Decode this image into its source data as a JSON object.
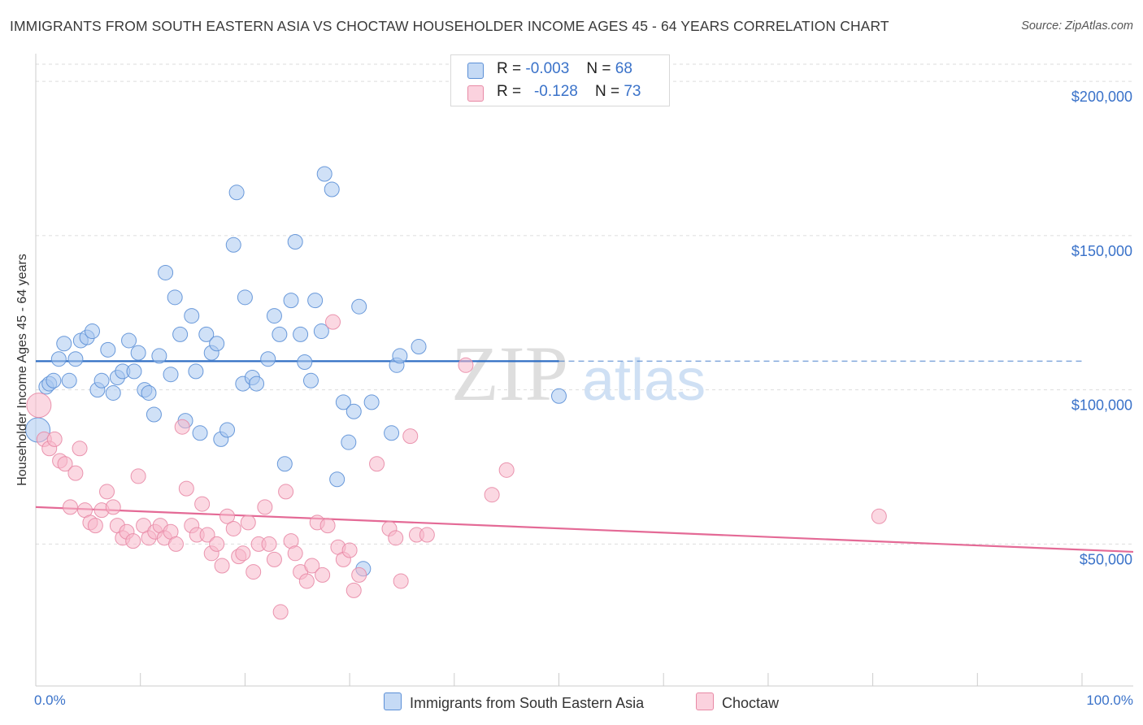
{
  "title": "IMMIGRANTS FROM SOUTH EASTERN ASIA VS CHOCTAW HOUSEHOLDER INCOME AGES 45 - 64 YEARS CORRELATION CHART",
  "source": "Source: ZipAtlas.com",
  "watermark": {
    "zip": "ZIP",
    "atlas": "atlas"
  },
  "legend": {
    "r_label": "R =",
    "n_label": "N =",
    "blue": {
      "r": "-0.003",
      "n": "68"
    },
    "pink": {
      "r": "-0.128",
      "n": "73"
    }
  },
  "colors": {
    "blue_fill": "#a9c8f0",
    "blue_stroke": "#5b8fd6",
    "blue_line": "#2f6ec4",
    "pink_fill": "#f7b8cb",
    "pink_stroke": "#e88aa6",
    "pink_line": "#e46a96",
    "axis_label": "#3a72c9"
  },
  "chart_data": {
    "type": "scatter",
    "title": "IMMIGRANTS FROM SOUTH EASTERN ASIA VS CHOCTAW HOUSEHOLDER INCOME AGES 45 - 64 YEARS CORRELATION CHART",
    "xlabel": "",
    "ylabel": "Householder Income Ages 45 - 64 years",
    "xlim": [
      0,
      100
    ],
    "ylim": [
      4000,
      209000
    ],
    "x_tick_labels": [
      "0.0%",
      "100.0%"
    ],
    "y_ticks": [
      50000,
      100000,
      150000,
      200000
    ],
    "y_tick_labels": [
      "$50,000",
      "$100,000",
      "$150,000",
      "$200,000"
    ],
    "grid": true,
    "legend_position": "top-center",
    "series": [
      {
        "name": "Immigrants from South Eastern Asia",
        "color": "#a9c8f0",
        "trend": {
          "x": [
            0,
            50
          ],
          "y": [
            109300,
            109300
          ],
          "dashed_to_x": 100
        },
        "points": [
          [
            0.2,
            87000
          ],
          [
            1.0,
            101000
          ],
          [
            1.3,
            102000
          ],
          [
            1.7,
            103000
          ],
          [
            2.2,
            110000
          ],
          [
            2.7,
            115000
          ],
          [
            3.2,
            103000
          ],
          [
            3.8,
            110000
          ],
          [
            4.3,
            116000
          ],
          [
            4.9,
            117000
          ],
          [
            5.4,
            119000
          ],
          [
            5.9,
            100000
          ],
          [
            6.3,
            103000
          ],
          [
            6.9,
            113000
          ],
          [
            7.4,
            99000
          ],
          [
            7.8,
            104000
          ],
          [
            8.3,
            106000
          ],
          [
            8.9,
            116000
          ],
          [
            9.4,
            106000
          ],
          [
            9.8,
            112000
          ],
          [
            10.4,
            100000
          ],
          [
            10.8,
            99000
          ],
          [
            11.3,
            92000
          ],
          [
            11.8,
            111000
          ],
          [
            12.4,
            138000
          ],
          [
            12.9,
            105000
          ],
          [
            13.3,
            130000
          ],
          [
            13.8,
            118000
          ],
          [
            14.3,
            90000
          ],
          [
            14.9,
            124000
          ],
          [
            15.3,
            106000
          ],
          [
            15.7,
            86000
          ],
          [
            16.3,
            118000
          ],
          [
            16.8,
            112000
          ],
          [
            17.3,
            115000
          ],
          [
            17.7,
            84000
          ],
          [
            18.3,
            87000
          ],
          [
            18.9,
            147000
          ],
          [
            19.2,
            164000
          ],
          [
            19.8,
            102000
          ],
          [
            20.0,
            130000
          ],
          [
            20.7,
            104000
          ],
          [
            21.1,
            102000
          ],
          [
            22.2,
            110000
          ],
          [
            22.8,
            124000
          ],
          [
            23.3,
            118000
          ],
          [
            23.8,
            76000
          ],
          [
            24.4,
            129000
          ],
          [
            24.8,
            148000
          ],
          [
            25.3,
            118000
          ],
          [
            25.7,
            109000
          ],
          [
            26.3,
            103000
          ],
          [
            26.7,
            129000
          ],
          [
            27.3,
            119000
          ],
          [
            27.6,
            170000
          ],
          [
            28.3,
            165000
          ],
          [
            28.8,
            71000
          ],
          [
            29.4,
            96000
          ],
          [
            29.9,
            83000
          ],
          [
            30.4,
            93000
          ],
          [
            30.9,
            127000
          ],
          [
            31.3,
            42000
          ],
          [
            32.1,
            96000
          ],
          [
            34.0,
            86000
          ],
          [
            34.5,
            108000
          ],
          [
            34.8,
            111000
          ],
          [
            36.6,
            114000
          ],
          [
            50.0,
            98000
          ]
        ]
      },
      {
        "name": "Choctaw",
        "color": "#f7b8cb",
        "trend": {
          "x": [
            0,
            100
          ],
          "y": [
            62000,
            47500
          ]
        },
        "points": [
          [
            0.3,
            95000
          ],
          [
            0.8,
            84000
          ],
          [
            1.3,
            81000
          ],
          [
            1.8,
            84000
          ],
          [
            2.3,
            77000
          ],
          [
            2.8,
            76000
          ],
          [
            3.3,
            62000
          ],
          [
            3.8,
            73000
          ],
          [
            4.2,
            81000
          ],
          [
            4.7,
            61000
          ],
          [
            5.2,
            57000
          ],
          [
            5.7,
            56000
          ],
          [
            6.3,
            61000
          ],
          [
            6.8,
            67000
          ],
          [
            7.4,
            62000
          ],
          [
            7.8,
            56000
          ],
          [
            8.3,
            52000
          ],
          [
            8.7,
            54000
          ],
          [
            9.3,
            51000
          ],
          [
            9.8,
            72000
          ],
          [
            10.3,
            56000
          ],
          [
            10.8,
            52000
          ],
          [
            11.4,
            54000
          ],
          [
            11.9,
            56000
          ],
          [
            12.3,
            52000
          ],
          [
            12.9,
            54000
          ],
          [
            13.4,
            50000
          ],
          [
            14.0,
            88000
          ],
          [
            14.4,
            68000
          ],
          [
            14.9,
            56000
          ],
          [
            15.4,
            53000
          ],
          [
            15.9,
            63000
          ],
          [
            16.4,
            53000
          ],
          [
            16.8,
            47000
          ],
          [
            17.3,
            50000
          ],
          [
            17.8,
            43000
          ],
          [
            18.3,
            59000
          ],
          [
            18.9,
            55000
          ],
          [
            19.4,
            46000
          ],
          [
            19.8,
            47000
          ],
          [
            20.3,
            57000
          ],
          [
            20.8,
            41000
          ],
          [
            21.3,
            50000
          ],
          [
            21.9,
            62000
          ],
          [
            22.3,
            50000
          ],
          [
            22.8,
            45000
          ],
          [
            23.4,
            28000
          ],
          [
            23.9,
            67000
          ],
          [
            24.4,
            51000
          ],
          [
            24.8,
            47000
          ],
          [
            25.3,
            41000
          ],
          [
            25.9,
            38000
          ],
          [
            26.4,
            43000
          ],
          [
            26.9,
            57000
          ],
          [
            27.4,
            40000
          ],
          [
            27.9,
            56000
          ],
          [
            28.4,
            122000
          ],
          [
            28.9,
            49000
          ],
          [
            29.4,
            45000
          ],
          [
            30.0,
            48000
          ],
          [
            30.4,
            35000
          ],
          [
            30.9,
            40000
          ],
          [
            32.6,
            76000
          ],
          [
            33.8,
            55000
          ],
          [
            34.4,
            52000
          ],
          [
            34.9,
            38000
          ],
          [
            35.8,
            85000
          ],
          [
            36.4,
            53000
          ],
          [
            37.4,
            53000
          ],
          [
            41.1,
            108000
          ],
          [
            43.6,
            66000
          ],
          [
            45.0,
            74000
          ],
          [
            80.6,
            59000
          ]
        ]
      }
    ]
  }
}
